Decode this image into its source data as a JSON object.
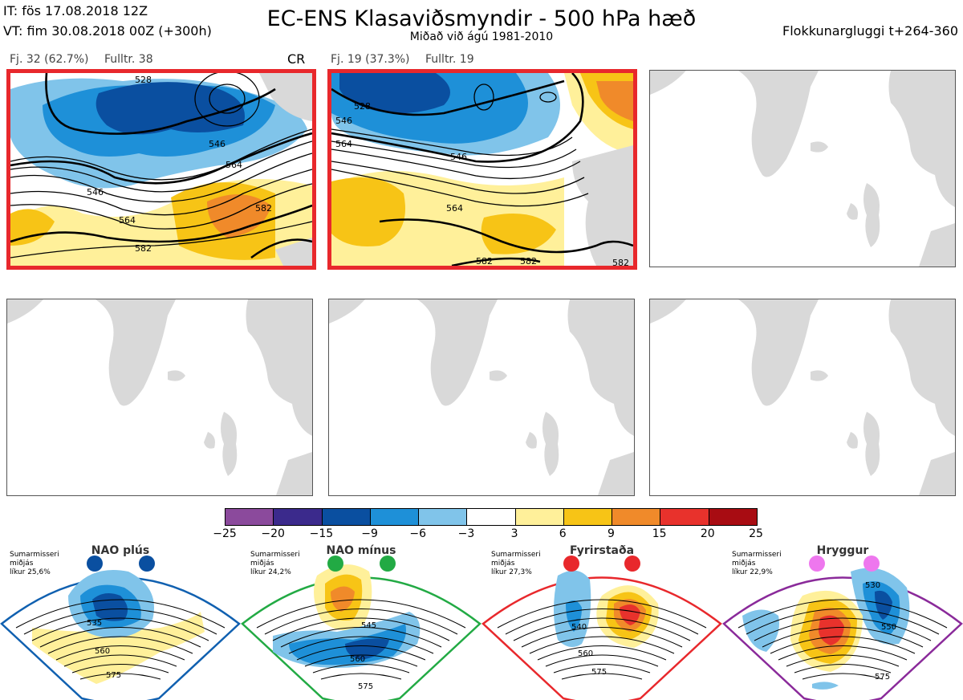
{
  "header": {
    "it_line": "IT: fös 17.08.2018 12Z",
    "vt_line": "VT: fim 30.08.2018 00Z  (+300h)",
    "title": "EC-ENS Klasaviðsmyndir - 500 hPa hæð",
    "subtitle": "Miðað við ágú 1981-2010",
    "window": "Flokkunargluggi t+264-360"
  },
  "clusters": [
    {
      "label": "Fj. 32 (62.7%)",
      "fulltr": "Fulltr. 38",
      "tag": "CR",
      "contours": [
        "528",
        "546",
        "564",
        "582",
        "546",
        "564",
        "582"
      ]
    },
    {
      "label": "Fj. 19 (37.3%)",
      "fulltr": "Fulltr. 19",
      "contours": [
        "528",
        "546",
        "564",
        "546",
        "564",
        "582",
        "582",
        "582"
      ]
    }
  ],
  "colorbar": {
    "ticks": [
      "−25",
      "−20",
      "−15",
      "−9",
      "−6",
      "−3",
      "3",
      "6",
      "9",
      "15",
      "20",
      "25"
    ],
    "colors": [
      "#8b4a9c",
      "#3b2a8c",
      "#0a4fa0",
      "#1e90d8",
      "#80c4ea",
      "#ffffff",
      "#fff09a",
      "#f7c416",
      "#f08a2a",
      "#e8322c",
      "#a80c12"
    ]
  },
  "regimes": [
    {
      "name": "NAO plús",
      "season": "Sumarmisseri",
      "sub": "miðjás",
      "prob": "líkur 25,6%",
      "dot_color": "#0a4fa0",
      "frame_color": "#1060b0",
      "contours": [
        "535",
        "560",
        "575"
      ]
    },
    {
      "name": "NAO mínus",
      "season": "Sumarmisseri",
      "sub": "miðjás",
      "prob": "líkur 24,2%",
      "dot_color": "#22aa44",
      "frame_color": "#22aa44",
      "contours": [
        "545",
        "560",
        "575"
      ]
    },
    {
      "name": "Fyrirstaða",
      "season": "Sumarmisseri",
      "sub": "miðjás",
      "prob": "líkur 27,3%",
      "dot_color": "#e8282c",
      "frame_color": "#e8282c",
      "contours": [
        "540",
        "560",
        "575"
      ]
    },
    {
      "name": "Hryggur",
      "season": "Sumarmisseri",
      "sub": "miðjás",
      "prob": "líkur 22,9%",
      "dot_color": "#ee77ee",
      "frame_color": "#8a2a9a",
      "contours": [
        "530",
        "550",
        "575"
      ]
    }
  ]
}
